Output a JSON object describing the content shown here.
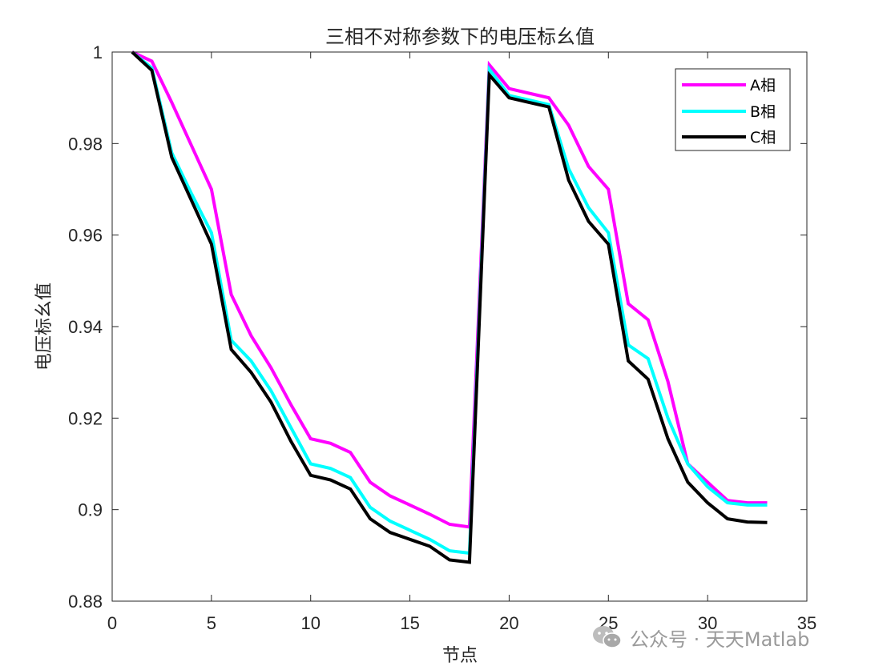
{
  "chart_data": {
    "type": "line",
    "title": "三相不对称参数下的电压标幺值",
    "xlabel": "节点",
    "ylabel": "电压标幺值",
    "xlim": [
      0,
      35
    ],
    "ylim": [
      0.88,
      1.0
    ],
    "xticks": [
      0,
      5,
      10,
      15,
      20,
      25,
      30,
      35
    ],
    "yticks": [
      0.88,
      0.9,
      0.92,
      0.94,
      0.96,
      0.98,
      1.0
    ],
    "xtick_labels": [
      "0",
      "5",
      "10",
      "15",
      "20",
      "25",
      "30",
      "35"
    ],
    "ytick_labels": [
      "0.88",
      "0.9",
      "0.92",
      "0.94",
      "0.96",
      "0.98",
      "1"
    ],
    "grid": false,
    "legend_position": "top-right",
    "x": [
      1,
      2,
      3,
      4,
      5,
      6,
      7,
      8,
      9,
      10,
      11,
      12,
      13,
      14,
      15,
      16,
      17,
      18,
      19,
      20,
      21,
      22,
      23,
      24,
      25,
      26,
      27,
      28,
      29,
      30,
      31,
      32,
      33
    ],
    "series": [
      {
        "name": "A相",
        "color": "#ff00ff",
        "values": [
          1.0,
          0.998,
          0.989,
          0.9795,
          0.97,
          0.947,
          0.938,
          0.931,
          0.923,
          0.9155,
          0.9145,
          0.9125,
          0.906,
          0.903,
          0.901,
          0.899,
          0.8968,
          0.8962,
          0.9972,
          0.992,
          0.991,
          0.99,
          0.984,
          0.975,
          0.97,
          0.945,
          0.9415,
          0.928,
          0.91,
          0.906,
          0.902,
          0.9015,
          0.9015
        ]
      },
      {
        "name": "B相",
        "color": "#00ffff",
        "values": [
          1.0,
          0.9965,
          0.978,
          0.969,
          0.9605,
          0.937,
          0.9325,
          0.926,
          0.918,
          0.91,
          0.909,
          0.907,
          0.9005,
          0.8975,
          0.8955,
          0.8935,
          0.891,
          0.8905,
          0.9962,
          0.9905,
          0.9895,
          0.9885,
          0.9745,
          0.966,
          0.9605,
          0.936,
          0.933,
          0.92,
          0.91,
          0.905,
          0.9015,
          0.901,
          0.901
        ]
      },
      {
        "name": "C相",
        "color": "#000000",
        "values": [
          1.0,
          0.996,
          0.977,
          0.9675,
          0.958,
          0.935,
          0.93,
          0.9235,
          0.915,
          0.9075,
          0.9065,
          0.9045,
          0.898,
          0.895,
          0.8935,
          0.892,
          0.889,
          0.8885,
          0.995,
          0.99,
          0.989,
          0.988,
          0.972,
          0.963,
          0.958,
          0.9325,
          0.9285,
          0.9155,
          0.906,
          0.9015,
          0.898,
          0.8973,
          0.8972
        ]
      }
    ]
  },
  "watermark": {
    "icon": "wechat-icon",
    "text": "公众号 · 天天Matlab"
  }
}
